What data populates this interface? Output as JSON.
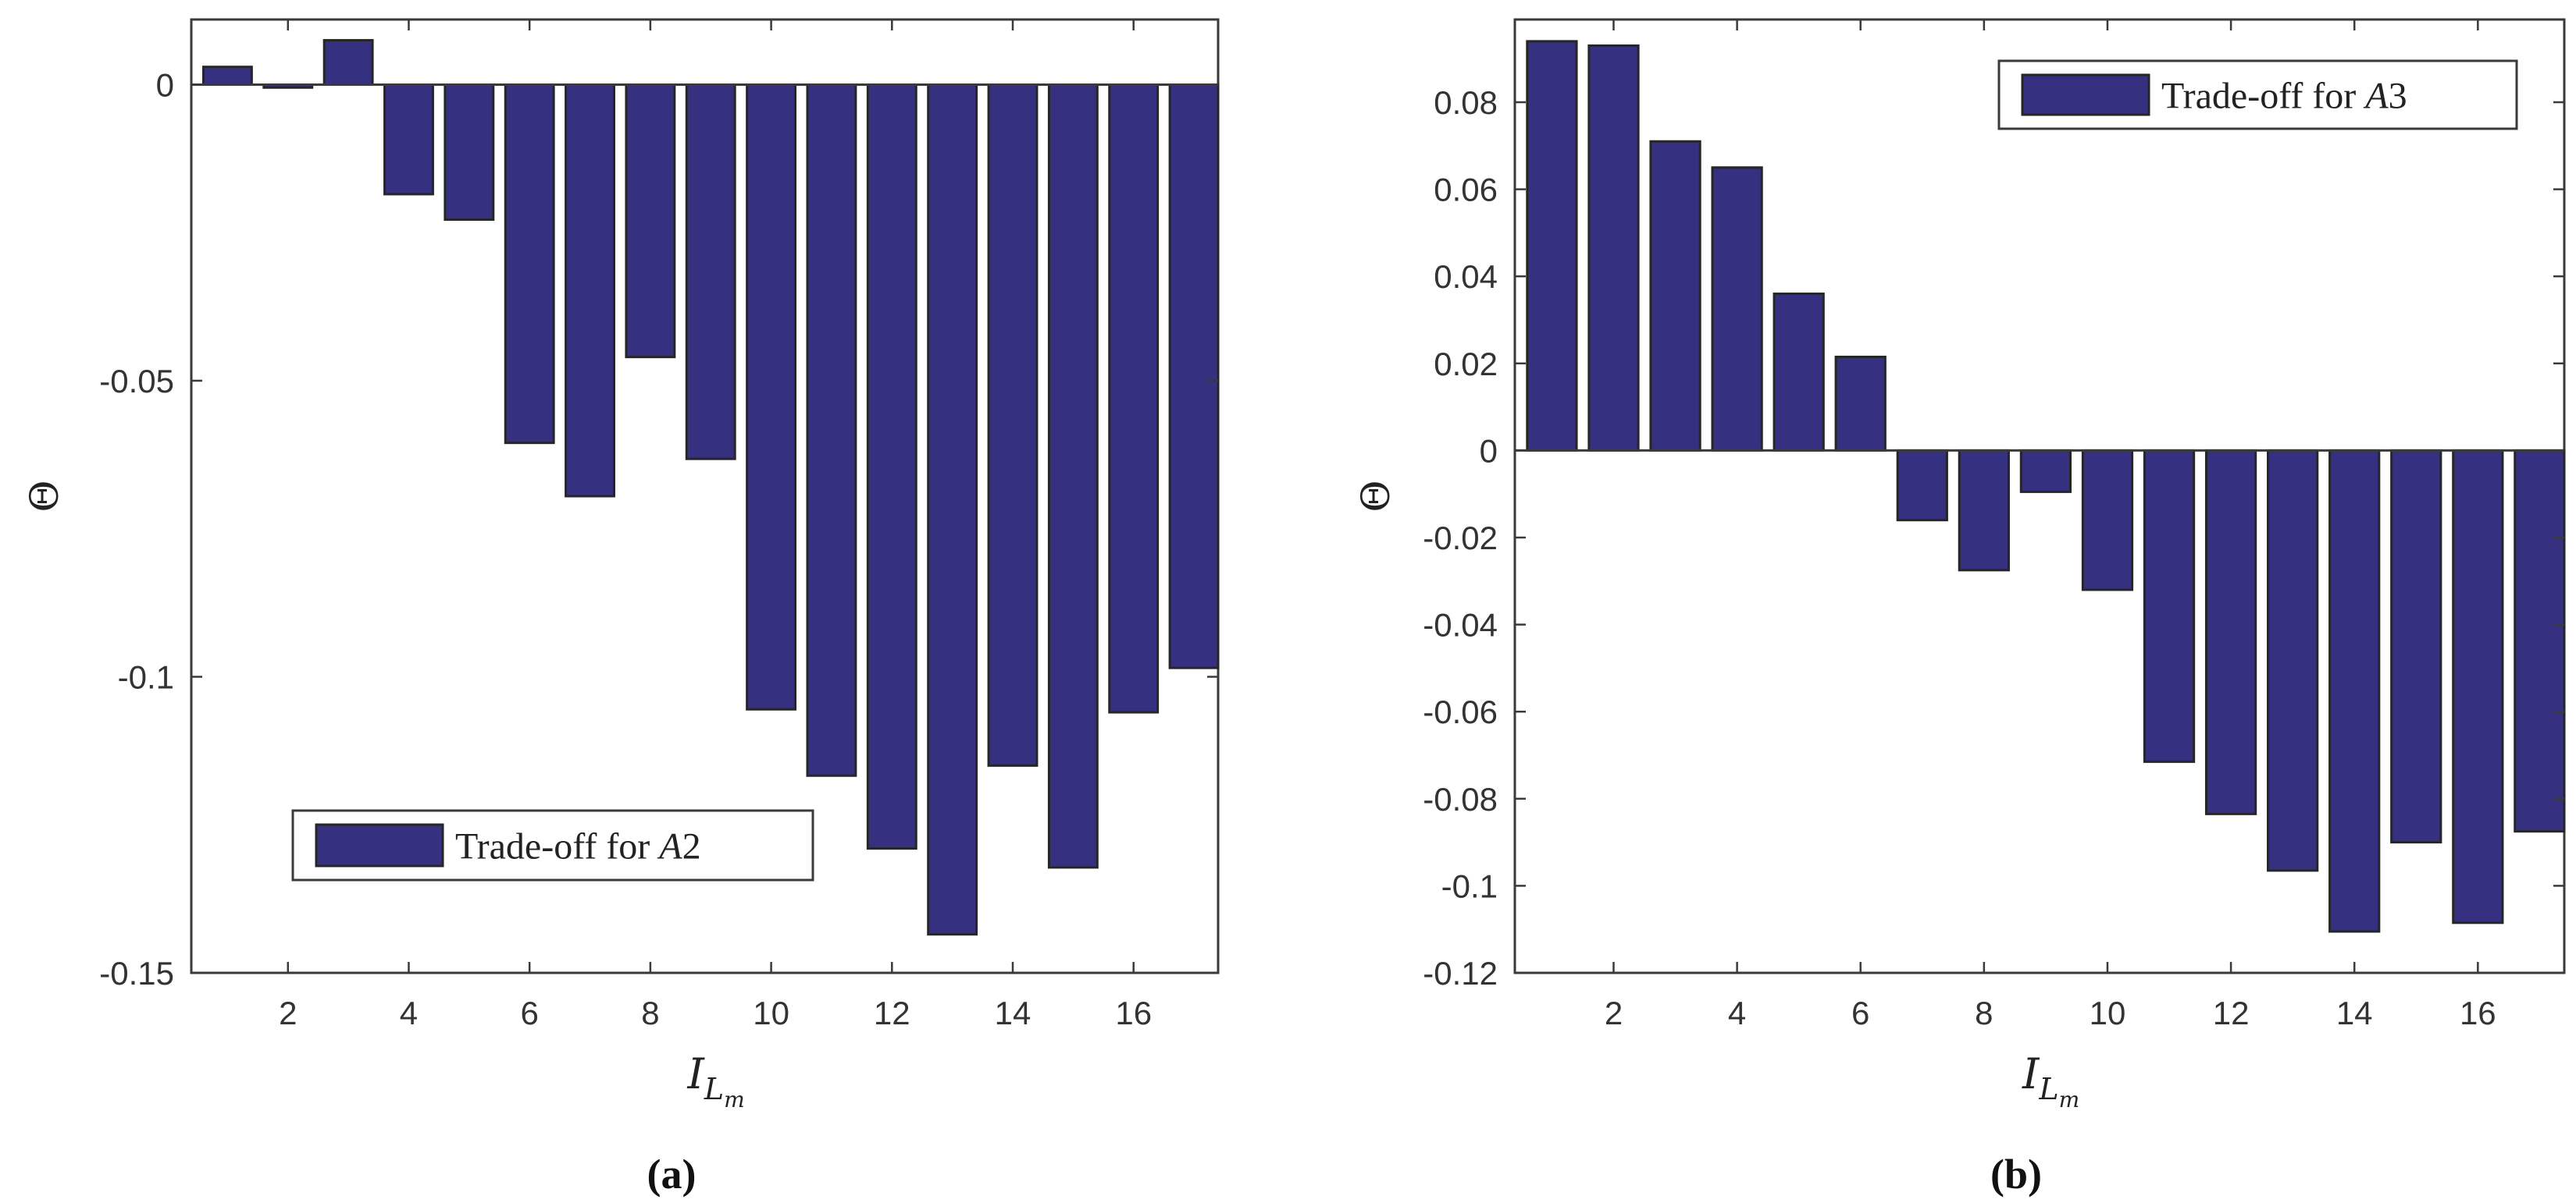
{
  "chart_data": [
    {
      "type": "bar",
      "caption": "(a)",
      "x": [
        1,
        2,
        3,
        4,
        5,
        6,
        7,
        8,
        9,
        10,
        11,
        12,
        13,
        14,
        15,
        16,
        17
      ],
      "values": [
        0.003,
        -0.0005,
        0.0075,
        -0.0185,
        -0.0228,
        -0.0605,
        -0.0695,
        -0.046,
        -0.0632,
        -0.1055,
        -0.1167,
        -0.129,
        -0.1435,
        -0.115,
        -0.1322,
        -0.106,
        -0.0985
      ],
      "series_name": "Trade-off for A2",
      "legend_prefix": "Trade-off for ",
      "legend_var": "A",
      "legend_num": "2",
      "legend_position": "bottom-center",
      "ylabel": "Θ",
      "xlabel": "I",
      "xlabel_sub": "L",
      "xlabel_subsub": "m",
      "xlim": [
        0.4,
        17.4
      ],
      "ylim": [
        -0.15,
        0.011
      ],
      "xticks": [
        2,
        4,
        6,
        8,
        10,
        12,
        14,
        16
      ],
      "xtick_labels": [
        "2",
        "4",
        "6",
        "8",
        "10",
        "12",
        "14",
        "16"
      ],
      "yticks": [
        0,
        -0.05,
        -0.1,
        -0.15
      ],
      "ytick_labels": [
        "0",
        "-0.05",
        "-0.1",
        "-0.15"
      ],
      "grid": false,
      "bar_color": "#35307f"
    },
    {
      "type": "bar",
      "caption": "(b)",
      "x": [
        1,
        2,
        3,
        4,
        5,
        6,
        7,
        8,
        9,
        10,
        11,
        12,
        13,
        14,
        15,
        16,
        17
      ],
      "values": [
        0.094,
        0.093,
        0.071,
        0.065,
        0.036,
        0.0215,
        -0.016,
        -0.0275,
        -0.0095,
        -0.032,
        -0.0715,
        -0.0835,
        -0.0965,
        -0.1105,
        -0.09,
        -0.1085,
        -0.0875
      ],
      "series_name": "Trade-off for A3",
      "legend_prefix": "Trade-off for ",
      "legend_var": "A",
      "legend_num": "3",
      "legend_position": "top-right",
      "ylabel": "Θ",
      "xlabel": "I",
      "xlabel_sub": "L",
      "xlabel_subsub": "m",
      "xlim": [
        0.4,
        17.4
      ],
      "ylim": [
        -0.12,
        0.099
      ],
      "xticks": [
        2,
        4,
        6,
        8,
        10,
        12,
        14,
        16
      ],
      "xtick_labels": [
        "2",
        "4",
        "6",
        "8",
        "10",
        "12",
        "14",
        "16"
      ],
      "yticks": [
        0.08,
        0.06,
        0.04,
        0.02,
        0,
        -0.02,
        -0.04,
        -0.06,
        -0.08,
        -0.1,
        -0.12
      ],
      "ytick_labels": [
        "0.08",
        "0.06",
        "0.04",
        "0.02",
        "0",
        "-0.02",
        "-0.04",
        "-0.06",
        "-0.08",
        "-0.1",
        "-0.12"
      ],
      "grid": false,
      "bar_color": "#35307f"
    }
  ]
}
